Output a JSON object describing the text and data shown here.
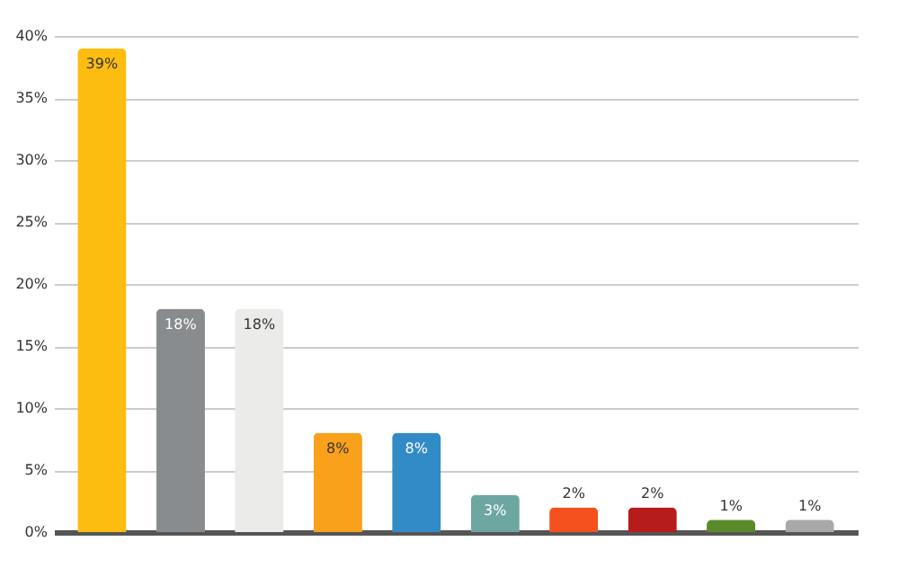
{
  "chart_data": {
    "type": "bar",
    "categories": [
      null,
      null,
      null,
      null,
      null,
      null,
      null,
      null,
      null,
      null
    ],
    "values": [
      39,
      18,
      18,
      8,
      8,
      3,
      2,
      2,
      1,
      1
    ],
    "colors": [
      "#fcbd10",
      "#898c8f",
      "#ebebe9",
      "#f9a11b",
      "#318bc6",
      "#6ea7a1",
      "#f4511e",
      "#b71c1c",
      "#5a8a2a",
      "#a8a8a8"
    ],
    "value_labels": [
      "39%",
      "18%",
      "18%",
      "8%",
      "8%",
      "3%",
      "2%",
      "2%",
      "1%",
      "1%"
    ],
    "ylim": [
      0,
      40
    ],
    "yticks": [
      {
        "value": 0,
        "label": "0%"
      },
      {
        "value": 5,
        "label": "5%"
      },
      {
        "value": 10,
        "label": "10%"
      },
      {
        "value": 15,
        "label": "15%"
      },
      {
        "value": 20,
        "label": "20%"
      },
      {
        "value": 25,
        "label": "25%"
      },
      {
        "value": 30,
        "label": "30%"
      },
      {
        "value": 35,
        "label": "35%"
      },
      {
        "value": 40,
        "label": "40%"
      }
    ],
    "grid": "y"
  }
}
